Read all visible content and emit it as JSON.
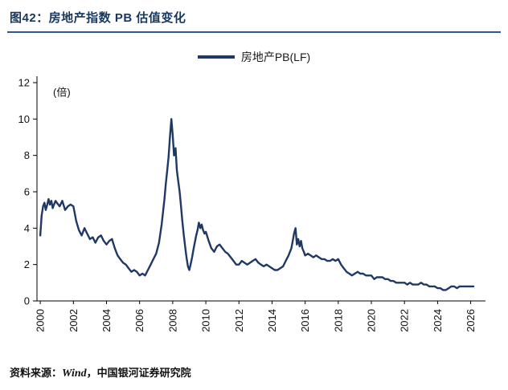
{
  "header": {
    "title": "图42：房地产指数 PB 估值变化"
  },
  "legend": {
    "label": "房地产PB(LF)"
  },
  "footer": {
    "prefix": "资料来源：",
    "source": "Wind",
    "suffix": "，中国银河证券研究院"
  },
  "colors": {
    "accent": "#17375E",
    "rule": "#2F5597",
    "line": "#1F3864",
    "axis": "#000000"
  },
  "chart_data": {
    "type": "line",
    "title": "图42：房地产指数 PB 估值变化",
    "ylabel_unit": "(倍)",
    "xlabel": "",
    "ylim": [
      0,
      12
    ],
    "yticks": [
      0,
      2,
      4,
      6,
      8,
      10,
      12
    ],
    "xlim": [
      1999.8,
      2026.7
    ],
    "xticks": [
      2000,
      2002,
      2004,
      2006,
      2008,
      2010,
      2012,
      2014,
      2016,
      2018,
      2020,
      2022,
      2024,
      2026
    ],
    "grid": false,
    "legend_position": "top-center",
    "series": [
      {
        "name": "房地产PB(LF)",
        "points": [
          [
            2000.0,
            3.6
          ],
          [
            2000.08,
            4.7
          ],
          [
            2000.17,
            5.2
          ],
          [
            2000.25,
            5.4
          ],
          [
            2000.33,
            5.0
          ],
          [
            2000.42,
            5.3
          ],
          [
            2000.5,
            5.6
          ],
          [
            2000.58,
            5.3
          ],
          [
            2000.67,
            5.5
          ],
          [
            2000.75,
            5.1
          ],
          [
            2000.83,
            5.3
          ],
          [
            2000.92,
            5.5
          ],
          [
            2001.0,
            5.4
          ],
          [
            2001.17,
            5.2
          ],
          [
            2001.33,
            5.5
          ],
          [
            2001.5,
            5.0
          ],
          [
            2001.67,
            5.2
          ],
          [
            2001.83,
            5.3
          ],
          [
            2002.0,
            5.2
          ],
          [
            2002.17,
            4.4
          ],
          [
            2002.33,
            3.9
          ],
          [
            2002.5,
            3.6
          ],
          [
            2002.67,
            4.0
          ],
          [
            2002.83,
            3.7
          ],
          [
            2003.0,
            3.4
          ],
          [
            2003.17,
            3.5
          ],
          [
            2003.33,
            3.2
          ],
          [
            2003.5,
            3.5
          ],
          [
            2003.67,
            3.6
          ],
          [
            2003.83,
            3.3
          ],
          [
            2004.0,
            3.1
          ],
          [
            2004.17,
            3.3
          ],
          [
            2004.33,
            3.4
          ],
          [
            2004.5,
            2.9
          ],
          [
            2004.67,
            2.5
          ],
          [
            2004.83,
            2.3
          ],
          [
            2005.0,
            2.1
          ],
          [
            2005.17,
            2.0
          ],
          [
            2005.33,
            1.8
          ],
          [
            2005.5,
            1.6
          ],
          [
            2005.67,
            1.7
          ],
          [
            2005.83,
            1.6
          ],
          [
            2006.0,
            1.4
          ],
          [
            2006.17,
            1.5
          ],
          [
            2006.33,
            1.4
          ],
          [
            2006.5,
            1.7
          ],
          [
            2006.67,
            2.0
          ],
          [
            2006.83,
            2.3
          ],
          [
            2007.0,
            2.6
          ],
          [
            2007.17,
            3.2
          ],
          [
            2007.33,
            4.2
          ],
          [
            2007.5,
            5.6
          ],
          [
            2007.58,
            6.4
          ],
          [
            2007.67,
            7.2
          ],
          [
            2007.75,
            7.9
          ],
          [
            2007.83,
            9.0
          ],
          [
            2007.92,
            10.0
          ],
          [
            2008.0,
            9.1
          ],
          [
            2008.08,
            8.0
          ],
          [
            2008.17,
            8.4
          ],
          [
            2008.25,
            7.2
          ],
          [
            2008.33,
            6.6
          ],
          [
            2008.42,
            6.0
          ],
          [
            2008.5,
            5.2
          ],
          [
            2008.58,
            4.4
          ],
          [
            2008.67,
            3.6
          ],
          [
            2008.75,
            3.0
          ],
          [
            2008.83,
            2.4
          ],
          [
            2008.92,
            1.9
          ],
          [
            2009.0,
            1.7
          ],
          [
            2009.08,
            2.0
          ],
          [
            2009.17,
            2.4
          ],
          [
            2009.25,
            2.8
          ],
          [
            2009.33,
            3.2
          ],
          [
            2009.42,
            3.6
          ],
          [
            2009.5,
            3.9
          ],
          [
            2009.58,
            4.3
          ],
          [
            2009.67,
            4.0
          ],
          [
            2009.75,
            4.2
          ],
          [
            2009.83,
            3.9
          ],
          [
            2009.92,
            3.7
          ],
          [
            2010.0,
            3.8
          ],
          [
            2010.17,
            3.3
          ],
          [
            2010.33,
            2.9
          ],
          [
            2010.5,
            2.7
          ],
          [
            2010.67,
            3.0
          ],
          [
            2010.83,
            3.1
          ],
          [
            2011.0,
            2.9
          ],
          [
            2011.17,
            2.7
          ],
          [
            2011.33,
            2.6
          ],
          [
            2011.5,
            2.4
          ],
          [
            2011.67,
            2.2
          ],
          [
            2011.83,
            2.0
          ],
          [
            2012.0,
            2.0
          ],
          [
            2012.17,
            2.2
          ],
          [
            2012.33,
            2.1
          ],
          [
            2012.5,
            2.0
          ],
          [
            2012.67,
            2.1
          ],
          [
            2012.83,
            2.2
          ],
          [
            2013.0,
            2.3
          ],
          [
            2013.17,
            2.1
          ],
          [
            2013.33,
            2.0
          ],
          [
            2013.5,
            1.9
          ],
          [
            2013.67,
            2.0
          ],
          [
            2013.83,
            1.9
          ],
          [
            2014.0,
            1.8
          ],
          [
            2014.17,
            1.7
          ],
          [
            2014.33,
            1.7
          ],
          [
            2014.5,
            1.8
          ],
          [
            2014.67,
            1.9
          ],
          [
            2014.83,
            2.2
          ],
          [
            2015.0,
            2.5
          ],
          [
            2015.17,
            2.9
          ],
          [
            2015.25,
            3.3
          ],
          [
            2015.33,
            3.7
          ],
          [
            2015.42,
            4.0
          ],
          [
            2015.5,
            3.1
          ],
          [
            2015.58,
            3.4
          ],
          [
            2015.67,
            3.0
          ],
          [
            2015.75,
            3.3
          ],
          [
            2015.83,
            2.9
          ],
          [
            2015.92,
            2.7
          ],
          [
            2016.0,
            2.5
          ],
          [
            2016.17,
            2.6
          ],
          [
            2016.33,
            2.5
          ],
          [
            2016.5,
            2.4
          ],
          [
            2016.67,
            2.5
          ],
          [
            2016.83,
            2.4
          ],
          [
            2017.0,
            2.3
          ],
          [
            2017.17,
            2.3
          ],
          [
            2017.33,
            2.2
          ],
          [
            2017.5,
            2.2
          ],
          [
            2017.67,
            2.3
          ],
          [
            2017.83,
            2.2
          ],
          [
            2018.0,
            2.3
          ],
          [
            2018.17,
            2.0
          ],
          [
            2018.33,
            1.8
          ],
          [
            2018.5,
            1.6
          ],
          [
            2018.67,
            1.5
          ],
          [
            2018.83,
            1.4
          ],
          [
            2019.0,
            1.5
          ],
          [
            2019.17,
            1.6
          ],
          [
            2019.33,
            1.5
          ],
          [
            2019.5,
            1.5
          ],
          [
            2019.67,
            1.4
          ],
          [
            2019.83,
            1.4
          ],
          [
            2020.0,
            1.4
          ],
          [
            2020.17,
            1.2
          ],
          [
            2020.33,
            1.3
          ],
          [
            2020.5,
            1.3
          ],
          [
            2020.67,
            1.3
          ],
          [
            2020.83,
            1.2
          ],
          [
            2021.0,
            1.2
          ],
          [
            2021.17,
            1.1
          ],
          [
            2021.33,
            1.1
          ],
          [
            2021.5,
            1.0
          ],
          [
            2021.67,
            1.0
          ],
          [
            2021.83,
            1.0
          ],
          [
            2022.0,
            1.0
          ],
          [
            2022.17,
            0.9
          ],
          [
            2022.33,
            1.0
          ],
          [
            2022.5,
            0.9
          ],
          [
            2022.67,
            0.9
          ],
          [
            2022.83,
            0.9
          ],
          [
            2023.0,
            1.0
          ],
          [
            2023.17,
            0.9
          ],
          [
            2023.33,
            0.9
          ],
          [
            2023.5,
            0.8
          ],
          [
            2023.67,
            0.8
          ],
          [
            2023.83,
            0.8
          ],
          [
            2024.0,
            0.7
          ],
          [
            2024.17,
            0.7
          ],
          [
            2024.33,
            0.6
          ],
          [
            2024.5,
            0.6
          ],
          [
            2024.67,
            0.7
          ],
          [
            2024.83,
            0.8
          ],
          [
            2025.0,
            0.8
          ],
          [
            2025.17,
            0.7
          ],
          [
            2025.33,
            0.8
          ],
          [
            2025.5,
            0.8
          ],
          [
            2025.67,
            0.8
          ],
          [
            2025.83,
            0.8
          ],
          [
            2026.0,
            0.8
          ],
          [
            2026.17,
            0.8
          ]
        ]
      }
    ]
  }
}
